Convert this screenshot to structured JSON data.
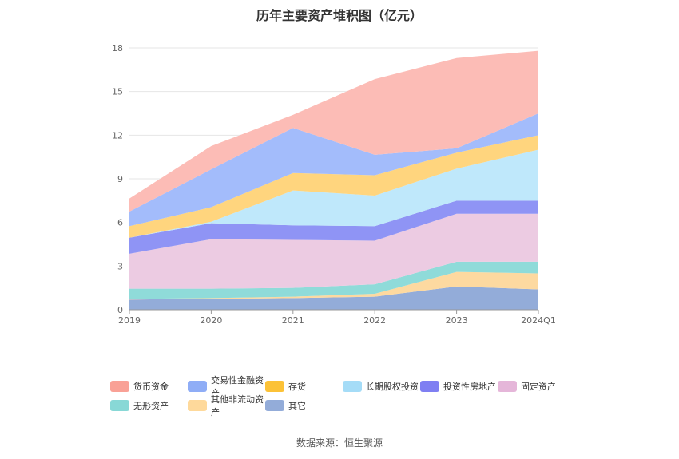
{
  "chart_data": {
    "type": "area",
    "stacked": true,
    "title": "历年主要资产堆积图（亿元）",
    "categories": [
      "2019",
      "2020",
      "2021",
      "2022",
      "2023",
      "2024Q1"
    ],
    "ylim": [
      0,
      18
    ],
    "yticks": [
      "0",
      "3",
      "6",
      "9",
      "12",
      "15",
      "18"
    ],
    "grid": true,
    "legend_position": "bottom",
    "series": [
      {
        "name": "其它",
        "color": "#93acd9",
        "values": [
          0.7,
          0.75,
          0.8,
          0.9,
          1.6,
          1.4
        ]
      },
      {
        "name": "其他非流动资产",
        "color": "#fdd9a0",
        "values": [
          0.05,
          0.05,
          0.1,
          0.2,
          1.0,
          1.1
        ]
      },
      {
        "name": "无形资产",
        "color": "#8fdbd9",
        "values": [
          0.7,
          0.65,
          0.6,
          0.65,
          0.7,
          0.8
        ]
      },
      {
        "name": "固定资产",
        "color": "#eccbe2",
        "values": [
          2.4,
          3.4,
          3.3,
          3.0,
          3.3,
          3.3
        ]
      },
      {
        "name": "投资性房地产",
        "color": "#8f94f5",
        "values": [
          1.1,
          1.1,
          1.0,
          1.0,
          0.9,
          0.9
        ]
      },
      {
        "name": "长期股权投资",
        "color": "#bfe8fb",
        "values": [
          0.0,
          0.1,
          2.4,
          2.1,
          2.2,
          3.5
        ]
      },
      {
        "name": "存货",
        "color": "#ffd57e",
        "values": [
          0.8,
          1.0,
          1.2,
          1.4,
          1.1,
          1.0
        ]
      },
      {
        "name": "交易性金融资产",
        "color": "#a3bcfb",
        "values": [
          1.0,
          2.6,
          3.1,
          1.4,
          0.3,
          1.5
        ]
      },
      {
        "name": "货币资金",
        "color": "#fcbcb6",
        "values": [
          0.9,
          1.6,
          0.9,
          5.2,
          6.2,
          4.3
        ]
      }
    ],
    "legend": [
      {
        "name": "货币资金",
        "color": "#f9a196"
      },
      {
        "name": "交易性金融资产",
        "color": "#8fadf6"
      },
      {
        "name": "存货",
        "color": "#fcc237"
      },
      {
        "name": "长期股权投资",
        "color": "#a5dcf7"
      },
      {
        "name": "投资性房地产",
        "color": "#7f7ff2"
      },
      {
        "name": "固定资产",
        "color": "#e5b6d9"
      },
      {
        "name": "无形资产",
        "color": "#88d8d6"
      },
      {
        "name": "其他非流动资产",
        "color": "#fed99b"
      },
      {
        "name": "其它",
        "color": "#93acd9"
      }
    ]
  },
  "source_note": "数据来源：恒生聚源"
}
